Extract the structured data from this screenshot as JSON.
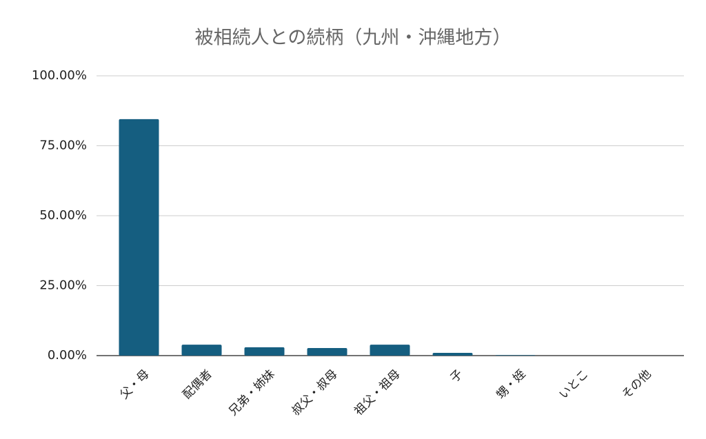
{
  "chart_data": {
    "type": "bar",
    "title": "被相続人との続柄（九州・沖縄地方）",
    "categories": [
      "父・母",
      "配偶者",
      "兄弟・姉妹",
      "叔父・叔母",
      "祖父・祖母",
      "子",
      "甥・姪",
      "いとこ",
      "その他"
    ],
    "values": [
      84.5,
      3.9,
      3.0,
      2.7,
      3.9,
      1.0,
      0.2,
      0,
      0
    ],
    "color": "#155e80",
    "ylim": [
      0,
      100
    ],
    "yticks": [
      {
        "value": 0,
        "label": "0.00%"
      },
      {
        "value": 25,
        "label": "25.00%"
      },
      {
        "value": 50,
        "label": "50.00%"
      },
      {
        "value": 75,
        "label": "75.00%"
      },
      {
        "value": 100,
        "label": "100.00%"
      }
    ],
    "grid": true
  }
}
